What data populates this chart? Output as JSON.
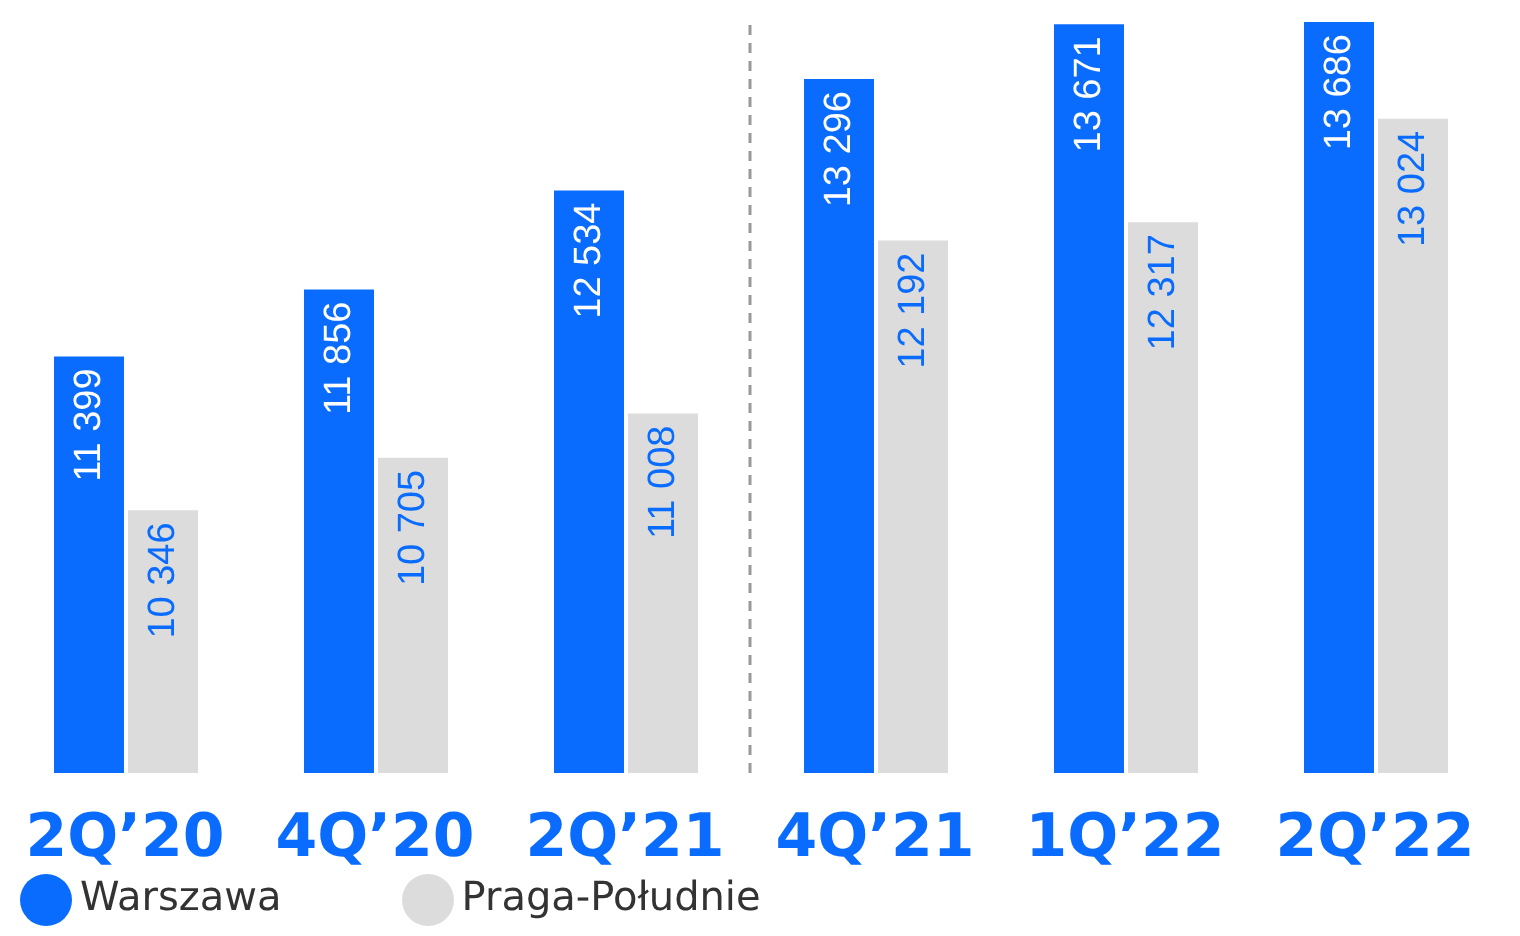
{
  "chart_data": {
    "type": "bar",
    "categories": [
      "2Q’20",
      "4Q’20",
      "2Q’21",
      "4Q’21",
      "1Q’22",
      "2Q’22"
    ],
    "series": [
      {
        "name": "Warszawa",
        "color": "#0a6cff",
        "values": [
          11399,
          11856,
          12534,
          13296,
          13671,
          13686
        ],
        "value_labels": [
          "11 399",
          "11 856",
          "12 534",
          "13 296",
          "13 671",
          "13 686"
        ]
      },
      {
        "name": "Praga-Południe",
        "color": "#dcdcdc",
        "values": [
          10346,
          10705,
          11008,
          12192,
          12317,
          13024
        ],
        "value_labels": [
          "10 346",
          "10 705",
          "11 008",
          "12 192",
          "12 317",
          "13 024"
        ]
      }
    ],
    "ylim": [
      8550,
      13700
    ],
    "tick_labels": "x",
    "legend": "bottom left",
    "grid": false
  }
}
